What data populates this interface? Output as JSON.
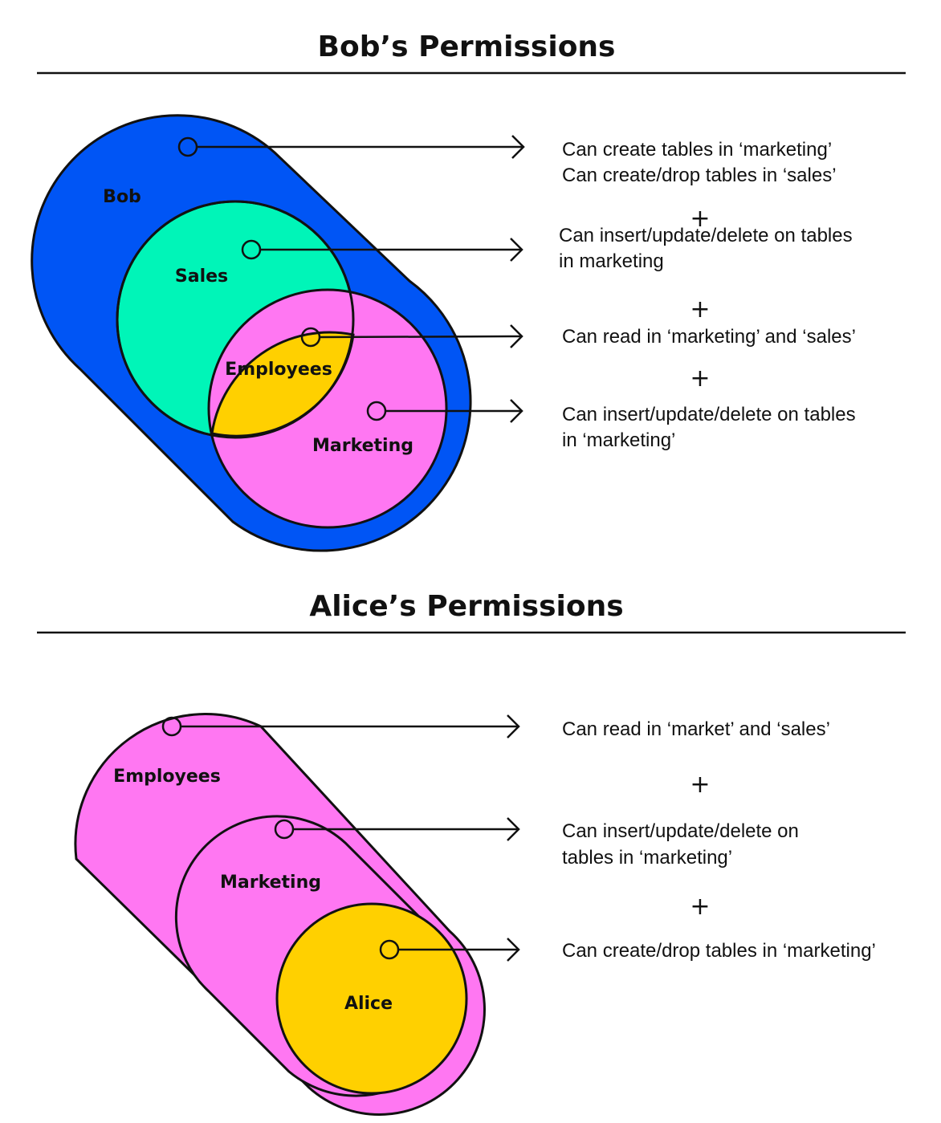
{
  "colors": {
    "blue": "#0055F5",
    "green": "#00F5B8",
    "yellow": "#FFD000",
    "pink": "#FF77F2",
    "ink": "#111111"
  },
  "bob": {
    "title": "Bob’s Permissions",
    "labels": {
      "bob": "Bob",
      "sales": "Sales",
      "employees": "Employees",
      "marketing": "Marketing"
    },
    "permissions": [
      [
        "Can create tables in ‘marketing’",
        "Can create/drop tables in ‘sales’"
      ],
      [
        "Can insert/update/delete on tables",
        "in marketing"
      ],
      [
        "Can read in ‘marketing’ and ‘sales’"
      ],
      [
        "Can insert/update/delete on tables",
        "in ‘marketing’"
      ]
    ],
    "plus": "+"
  },
  "alice": {
    "title": "Alice’s Permissions",
    "labels": {
      "employees": "Employees",
      "marketing": "Marketing",
      "alice": "Alice"
    },
    "permissions": [
      [
        "Can read in ‘market’ and ‘sales’"
      ],
      [
        "Can insert/update/delete on",
        "tables in ‘marketing’"
      ],
      [
        "Can create/drop tables in ‘marketing’"
      ]
    ],
    "plus": "+"
  }
}
